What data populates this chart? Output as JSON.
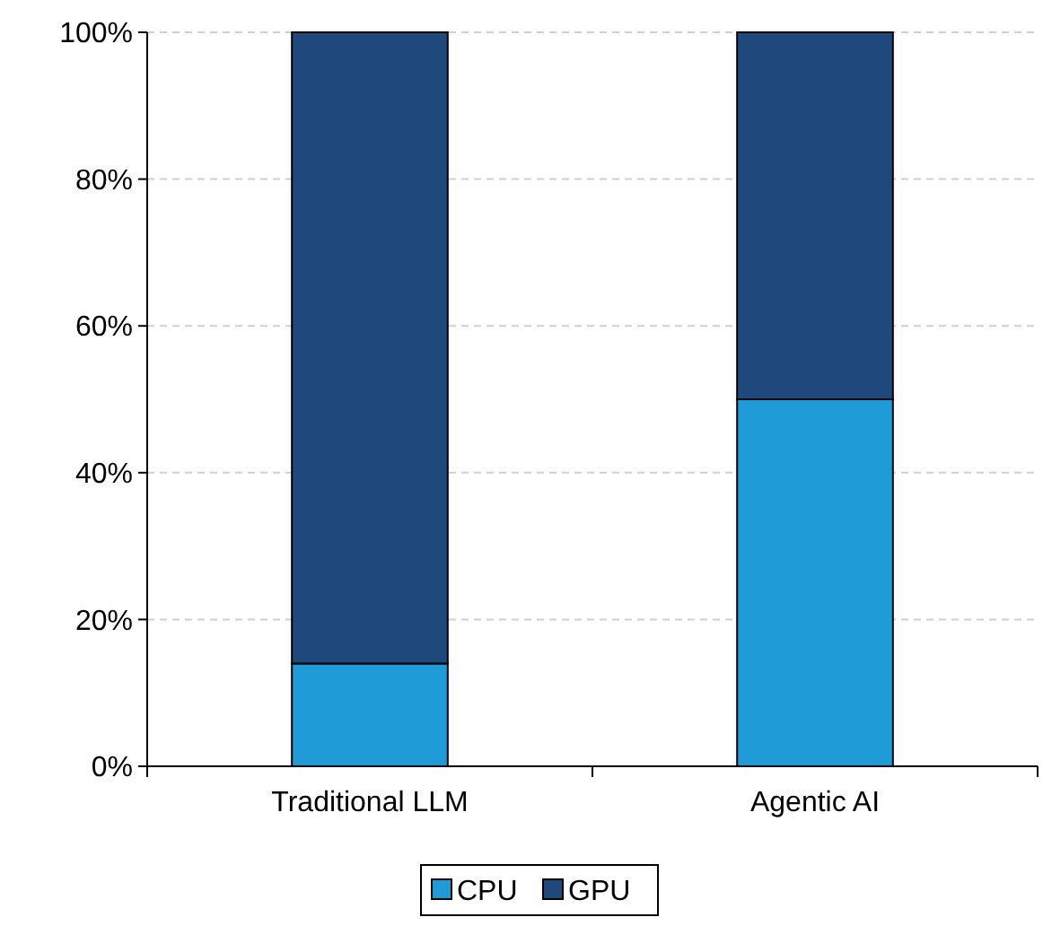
{
  "chart_data": {
    "type": "bar",
    "stacked": true,
    "categories": [
      "Traditional LLM",
      "Agentic AI"
    ],
    "series": [
      {
        "name": "CPU",
        "color": "#1f9bd8",
        "values": [
          14,
          50
        ]
      },
      {
        "name": "GPU",
        "color": "#1f487c",
        "values": [
          86,
          50
        ]
      }
    ],
    "ylim": [
      0,
      100
    ],
    "yticks": [
      {
        "value": 0,
        "label": "0%"
      },
      {
        "value": 20,
        "label": "20%"
      },
      {
        "value": 40,
        "label": "40%"
      },
      {
        "value": 60,
        "label": "60%"
      },
      {
        "value": 80,
        "label": "80%"
      },
      {
        "value": 100,
        "label": "100%"
      }
    ],
    "grid": "y",
    "legend": "bottom"
  }
}
